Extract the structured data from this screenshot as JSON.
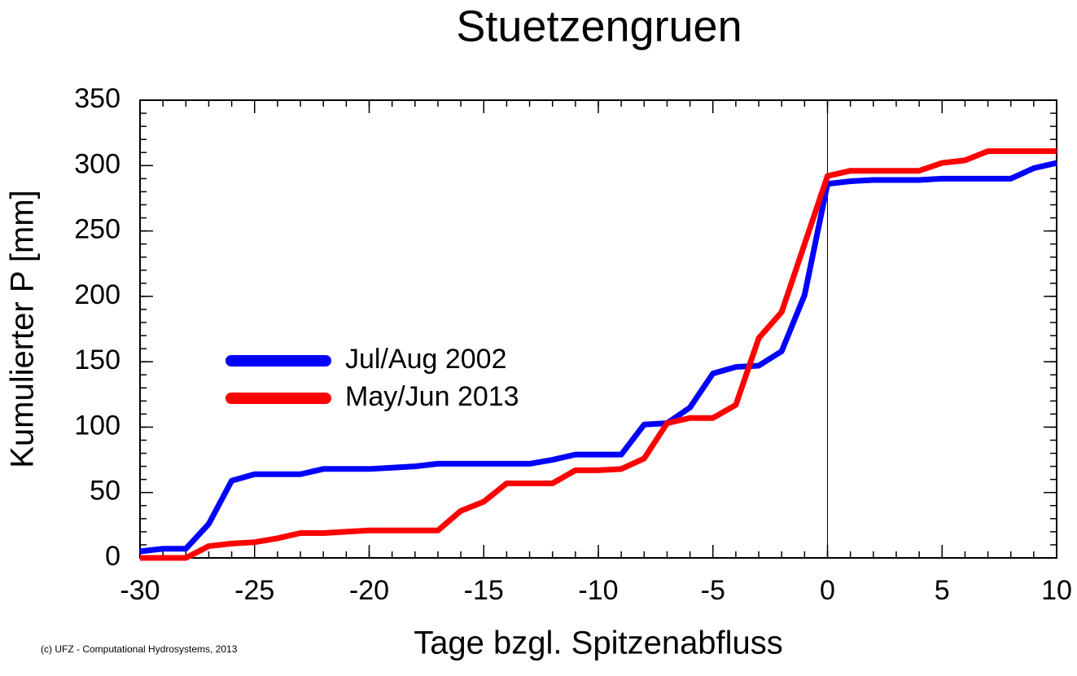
{
  "chart_data": {
    "type": "line",
    "title": "Stuetzengruen",
    "x_label": "Tage bzgl. Spitzenabfluss",
    "y_label": "Kumulierter P [mm]",
    "footer": "(c) UFZ - Computational Hydrosystems, 2013",
    "x": [
      -30,
      -29,
      -28,
      -27,
      -26,
      -25,
      -24,
      -23,
      -22,
      -21,
      -20,
      -19,
      -18,
      -17,
      -16,
      -15,
      -14,
      -13,
      -12,
      -11,
      -10,
      -9,
      -8,
      -7,
      -6,
      -5,
      -4,
      -3,
      -2,
      -1,
      0,
      1,
      2,
      3,
      4,
      5,
      6,
      7,
      8,
      9,
      10
    ],
    "series": [
      {
        "name": "Jul/Aug 2002",
        "color": "#0000ff",
        "values": [
          5,
          7,
          7,
          26,
          59,
          64,
          64,
          64,
          68,
          68,
          68,
          69,
          70,
          72,
          72,
          72,
          72,
          72,
          75,
          79,
          79,
          79,
          102,
          103,
          115,
          141,
          146,
          147,
          158,
          201,
          286,
          288,
          289,
          289,
          289,
          290,
          290,
          290,
          290,
          298,
          302
        ]
      },
      {
        "name": "May/Jun 2013",
        "color": "#ff0000",
        "values": [
          0,
          0,
          0,
          9,
          11,
          12,
          15,
          19,
          19,
          20,
          21,
          21,
          21,
          21,
          36,
          43,
          57,
          57,
          57,
          67,
          67,
          68,
          76,
          103,
          107,
          107,
          117,
          168,
          188,
          240,
          292,
          296,
          296,
          296,
          296,
          302,
          304,
          311,
          311,
          311,
          311
        ]
      }
    ],
    "xlim": [
      -30,
      10
    ],
    "xticks": [
      -30,
      -25,
      -20,
      -15,
      -10,
      -5,
      0,
      5,
      10
    ],
    "x_minor_step": 1,
    "ylim": [
      0,
      350
    ],
    "yticks": [
      0,
      50,
      100,
      150,
      200,
      250,
      300,
      350
    ],
    "y_minor_step": 10,
    "reference_line_x": 0,
    "legend": "center-left",
    "grid": false
  }
}
